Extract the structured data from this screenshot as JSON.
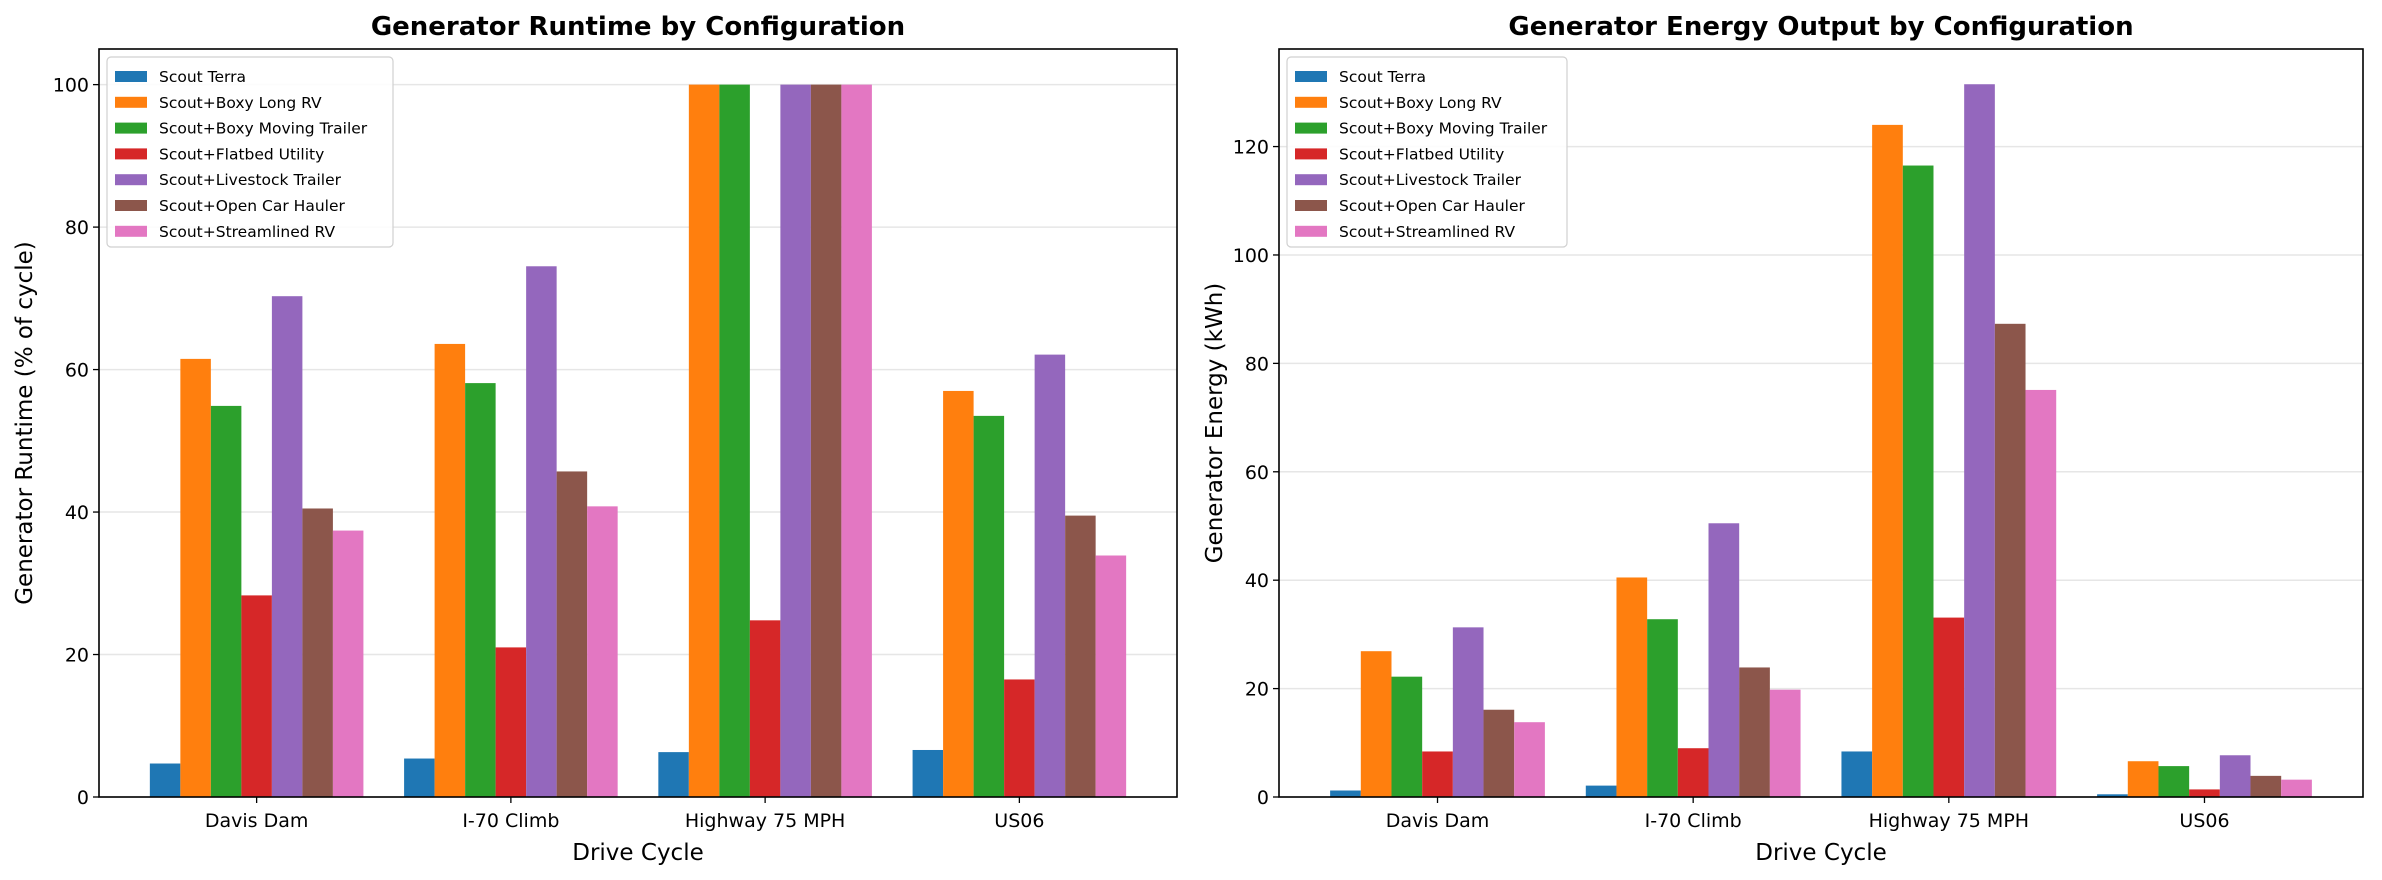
{
  "colors": [
    "#1f77b4",
    "#ff7f0e",
    "#2ca02c",
    "#d62728",
    "#9467bd",
    "#8c564b",
    "#e377c2"
  ],
  "chart_data": [
    {
      "type": "bar",
      "title": "Generator Runtime by Configuration",
      "xlabel": "Drive Cycle",
      "ylabel": "Generator Runtime (% of cycle)",
      "categories": [
        "Davis Dam",
        "I-70 Climb",
        "Highway 75 MPH",
        "US06"
      ],
      "ylim": [
        0,
        105
      ],
      "yticks": [
        0,
        20,
        40,
        60,
        80,
        100
      ],
      "grid": "y",
      "legend": "top-left",
      "series": [
        {
          "name": "Scout Terra",
          "values": [
            4.7,
            5.4,
            6.3,
            6.6
          ]
        },
        {
          "name": "Scout+Boxy Long RV",
          "values": [
            61.5,
            63.6,
            100,
            57.0
          ]
        },
        {
          "name": "Scout+Boxy Moving Trailer",
          "values": [
            54.9,
            58.1,
            100,
            53.5
          ]
        },
        {
          "name": "Scout+Flatbed Utility",
          "values": [
            28.3,
            21.0,
            24.8,
            16.5
          ]
        },
        {
          "name": "Scout+Livestock Trailer",
          "values": [
            70.3,
            74.5,
            100,
            62.1
          ]
        },
        {
          "name": "Scout+Open Car Hauler",
          "values": [
            40.5,
            45.7,
            100,
            39.5
          ]
        },
        {
          "name": "Scout+Streamlined RV",
          "values": [
            37.4,
            40.8,
            100,
            33.9
          ]
        }
      ]
    },
    {
      "type": "bar",
      "title": "Generator Energy Output by Configuration",
      "xlabel": "Drive Cycle",
      "ylabel": "Generator Energy (kWh)",
      "categories": [
        "Davis Dam",
        "I-70 Climb",
        "Highway 75 MPH",
        "US06"
      ],
      "ylim": [
        0,
        138
      ],
      "yticks": [
        0,
        20,
        40,
        60,
        80,
        100,
        120
      ],
      "grid": "y",
      "legend": "top-left",
      "series": [
        {
          "name": "Scout Terra",
          "values": [
            1.2,
            2.1,
            8.4,
            0.5
          ]
        },
        {
          "name": "Scout+Boxy Long RV",
          "values": [
            26.9,
            40.5,
            124.0,
            6.6
          ]
        },
        {
          "name": "Scout+Boxy Moving Trailer",
          "values": [
            22.2,
            32.8,
            116.5,
            5.7
          ]
        },
        {
          "name": "Scout+Flatbed Utility",
          "values": [
            8.4,
            9.0,
            33.1,
            1.4
          ]
        },
        {
          "name": "Scout+Livestock Trailer",
          "values": [
            31.3,
            50.5,
            131.5,
            7.7
          ]
        },
        {
          "name": "Scout+Open Car Hauler",
          "values": [
            16.1,
            23.9,
            87.3,
            3.9
          ]
        },
        {
          "name": "Scout+Streamlined RV",
          "values": [
            13.8,
            19.8,
            75.1,
            3.2
          ]
        }
      ]
    }
  ]
}
